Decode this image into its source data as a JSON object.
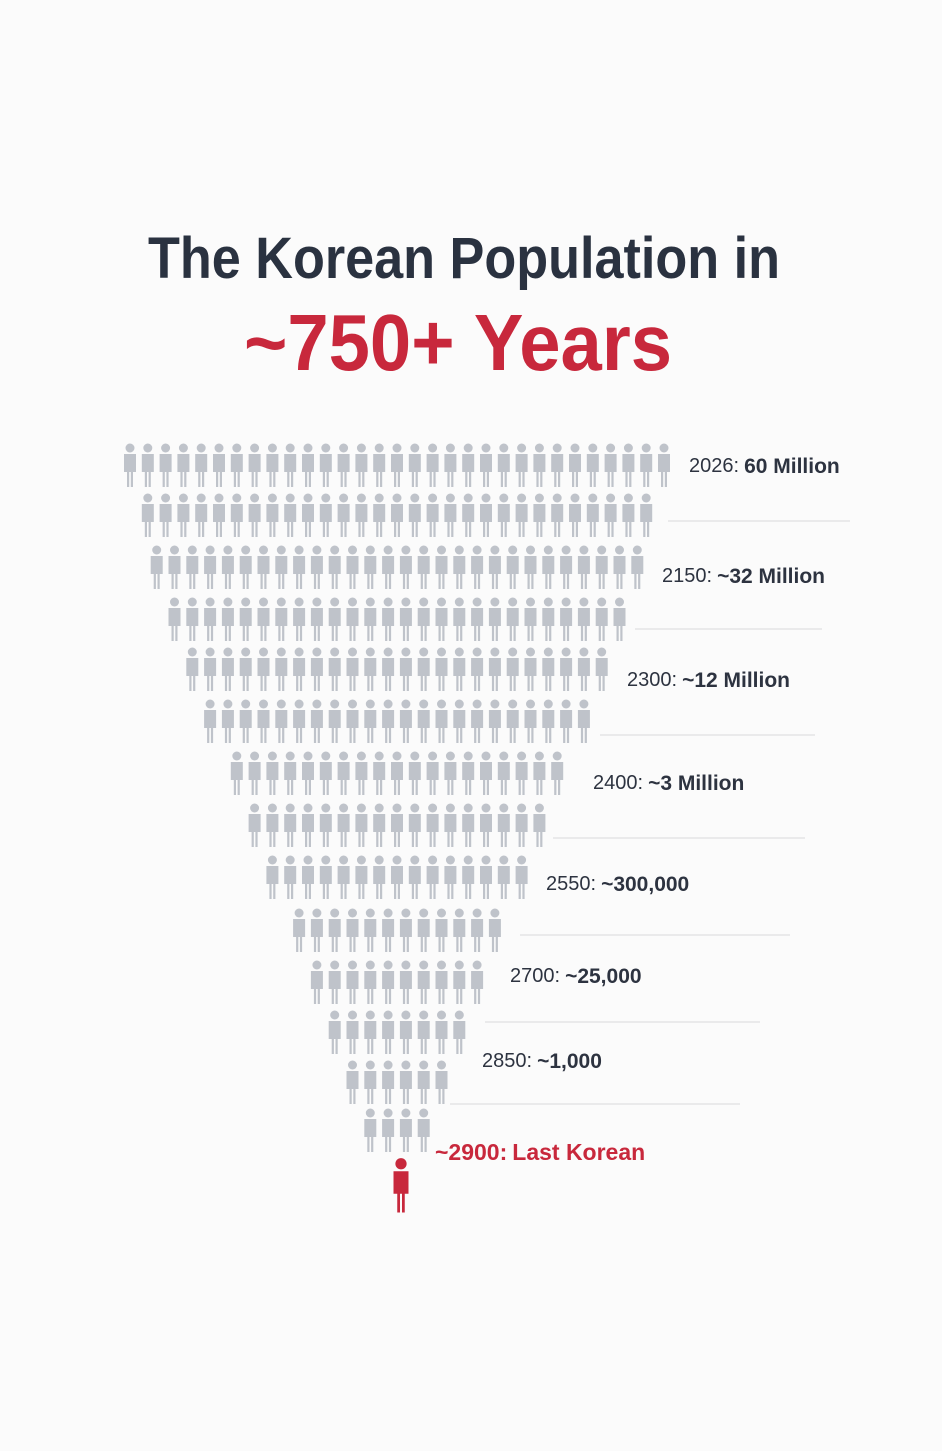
{
  "title": {
    "line1": "The Korean Population in",
    "line2": "~750+ Years"
  },
  "milestones": [
    {
      "year": "2026:",
      "amount": "60 Million"
    },
    {
      "year": "2150:",
      "amount": "~32 Million"
    },
    {
      "year": "2300:",
      "amount": "~12 Million"
    },
    {
      "year": "2400:",
      "amount": "~3 Million"
    },
    {
      "year": "2550:",
      "amount": "~300,000"
    },
    {
      "year": "2700:",
      "amount": "~25,000"
    },
    {
      "year": "2850:",
      "amount": "~1,000"
    },
    {
      "year": "~2900:",
      "amount": "Last Korean"
    }
  ]
}
